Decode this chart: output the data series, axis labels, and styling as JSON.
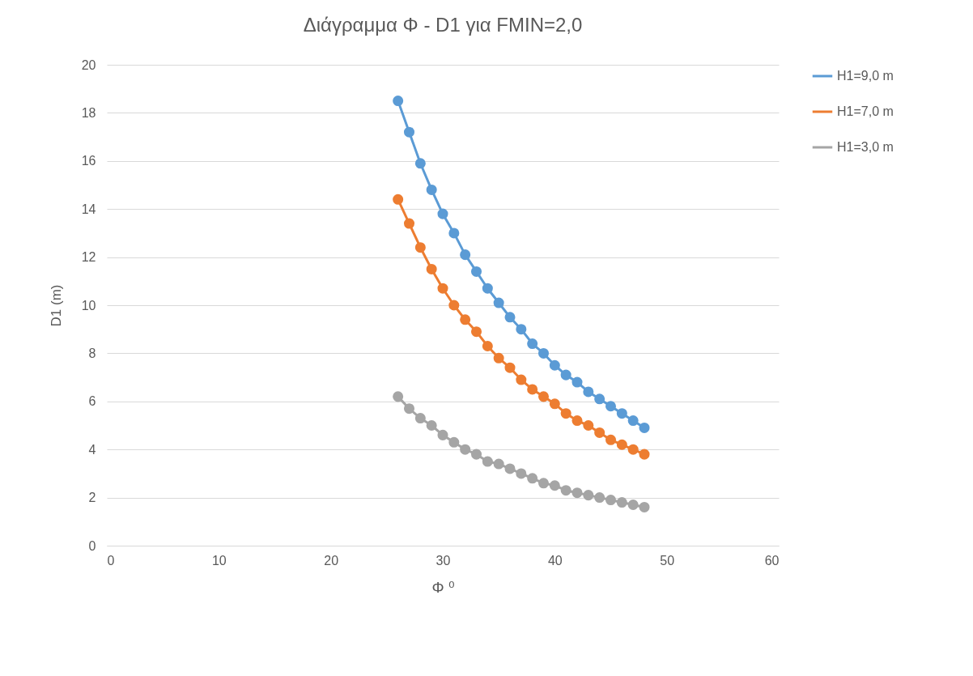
{
  "chart_data": {
    "type": "line",
    "title": "Διάγραμμα Φ - D1 για FMIN=2,0",
    "xlabel": "Φ ⁰",
    "ylabel": "D1 (m)",
    "x": [
      26,
      27,
      28,
      29,
      30,
      31,
      32,
      33,
      34,
      35,
      36,
      37,
      38,
      39,
      40,
      41,
      42,
      43,
      44,
      45,
      46,
      47,
      48
    ],
    "series": [
      {
        "name": "H1=9,0 m",
        "color": "#5b9bd5",
        "values": [
          18.5,
          17.2,
          15.9,
          14.8,
          13.8,
          13.0,
          12.1,
          11.4,
          10.7,
          10.1,
          9.5,
          9.0,
          8.4,
          8.0,
          7.5,
          7.1,
          6.8,
          6.4,
          6.1,
          5.8,
          5.5,
          5.2,
          4.9
        ]
      },
      {
        "name": "H1=7,0 m",
        "color": "#ed7d31",
        "values": [
          14.4,
          13.4,
          12.4,
          11.5,
          10.7,
          10.0,
          9.4,
          8.9,
          8.3,
          7.8,
          7.4,
          6.9,
          6.5,
          6.2,
          5.9,
          5.5,
          5.2,
          5.0,
          4.7,
          4.4,
          4.2,
          4.0,
          3.8
        ]
      },
      {
        "name": "H1=3,0 m",
        "color": "#a5a5a5",
        "values": [
          6.2,
          5.7,
          5.3,
          5.0,
          4.6,
          4.3,
          4.0,
          3.8,
          3.5,
          3.4,
          3.2,
          3.0,
          2.8,
          2.6,
          2.5,
          2.3,
          2.2,
          2.1,
          2.0,
          1.9,
          1.8,
          1.7,
          1.6
        ]
      }
    ],
    "xlim": [
      0,
      60
    ],
    "xticks": [
      0,
      10,
      20,
      30,
      40,
      50,
      60
    ],
    "ylim": [
      0,
      20
    ],
    "yticks": [
      0,
      2,
      4,
      6,
      8,
      10,
      12,
      14,
      16,
      18,
      20
    ],
    "grid": "y",
    "legend": "right",
    "marker": "circle",
    "line_style": "solid"
  }
}
